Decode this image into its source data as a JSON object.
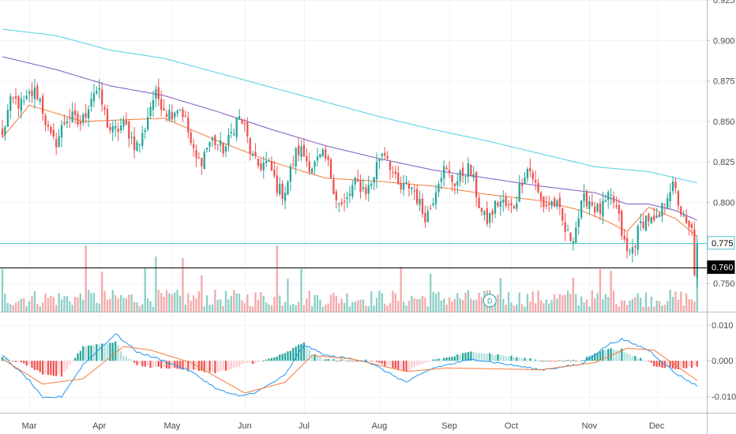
{
  "chart_data": [
    {
      "type": "candlestick",
      "panel": "price",
      "scale": "linear",
      "ylim": [
        0.7325,
        0.925
      ],
      "y_ticks": [
        "0.925",
        "0.900",
        "0.875",
        "0.850",
        "0.825",
        "0.800",
        "0.775",
        "0.750"
      ],
      "x_labels": [
        "Mar",
        "Apr",
        "May",
        "Jun",
        "Jul",
        "Aug",
        "Sep",
        "Oct",
        "Nov",
        "Dec"
      ],
      "price_lines": [
        {
          "label": "0.775",
          "value": 0.775,
          "color": "#4fc3c8",
          "text_color": "#000000",
          "bg": "#ffffff"
        },
        {
          "label": "0.760",
          "value": 0.76,
          "color": "#000000",
          "text_color": "#ffffff",
          "bg": "#000000"
        }
      ],
      "colors": {
        "up": "#26a69a",
        "down": "#ef5350",
        "up_volume": "#8ccfc6",
        "down_volume": "#f4a9a9",
        "ma_fast": "#f57c3a",
        "ma_mid": "#7e57c2",
        "ma_slow": "#4dd0e1"
      },
      "moving_averages": [
        {
          "points": [
            [
              0,
              0.84
            ],
            [
              10,
              0.86
            ],
            [
              30,
              0.85
            ],
            [
              60,
              0.852
            ],
            [
              80,
              0.838
            ],
            [
              100,
              0.825
            ],
            [
              120,
              0.815
            ],
            [
              140,
              0.813
            ],
            [
              160,
              0.81
            ],
            [
              180,
              0.805
            ],
            [
              200,
              0.801
            ],
            [
              215,
              0.795
            ],
            [
              225,
              0.788
            ],
            [
              232,
              0.782
            ],
            [
              240,
              0.797
            ],
            [
              250,
              0.79
            ],
            [
              258,
              0.779
            ]
          ]
        },
        {
          "points": [
            [
              0,
              0.89
            ],
            [
              20,
              0.882
            ],
            [
              40,
              0.872
            ],
            [
              60,
              0.866
            ],
            [
              80,
              0.856
            ],
            [
              100,
              0.845
            ],
            [
              120,
              0.835
            ],
            [
              140,
              0.827
            ],
            [
              160,
              0.82
            ],
            [
              180,
              0.815
            ],
            [
              200,
              0.81
            ],
            [
              220,
              0.806
            ],
            [
              232,
              0.799
            ],
            [
              240,
              0.799
            ],
            [
              250,
              0.795
            ],
            [
              258,
              0.789
            ]
          ]
        },
        {
          "points": [
            [
              0,
              0.907
            ],
            [
              20,
              0.903
            ],
            [
              40,
              0.894
            ],
            [
              60,
              0.889
            ],
            [
              80,
              0.88
            ],
            [
              100,
              0.871
            ],
            [
              120,
              0.862
            ],
            [
              140,
              0.853
            ],
            [
              160,
              0.845
            ],
            [
              180,
              0.838
            ],
            [
              200,
              0.83
            ],
            [
              220,
              0.822
            ],
            [
              240,
              0.819
            ],
            [
              258,
              0.812
            ]
          ]
        }
      ],
      "volume_markers": [
        {
          "label": "D",
          "bar": 181
        }
      ]
    },
    {
      "type": "histogram",
      "panel": "macd",
      "ylim": [
        -0.0145,
        0.0135
      ],
      "y_ticks": [
        "0.010",
        "0.000",
        "-0.010"
      ],
      "x_labels": [
        "Mar",
        "Apr",
        "May",
        "Jun",
        "Jul",
        "Aug",
        "Sep",
        "Oct",
        "Nov",
        "Dec"
      ],
      "colors": {
        "hist_up_strong": "#26a69a",
        "hist_up_weak": "#b2dfdb",
        "hist_down_strong": "#ef5350",
        "hist_down_weak": "#ffcdd2",
        "macd_line": "#2196f3",
        "signal_line": "#f57c3a"
      },
      "macd_line": [
        [
          0,
          0.0015
        ],
        [
          10,
          -0.0055
        ],
        [
          15,
          -0.0105
        ],
        [
          22,
          -0.01
        ],
        [
          30,
          -0.001
        ],
        [
          42,
          0.0075
        ],
        [
          50,
          0.0025
        ],
        [
          60,
          0.0
        ],
        [
          70,
          -0.003
        ],
        [
          80,
          -0.008
        ],
        [
          88,
          -0.01
        ],
        [
          95,
          -0.0085
        ],
        [
          105,
          -0.004
        ],
        [
          112,
          0.0045
        ],
        [
          120,
          0.0015
        ],
        [
          135,
          0.0
        ],
        [
          150,
          -0.006
        ],
        [
          160,
          -0.002
        ],
        [
          175,
          0.0005
        ],
        [
          200,
          -0.0025
        ],
        [
          215,
          -0.001
        ],
        [
          225,
          0.0045
        ],
        [
          230,
          0.006
        ],
        [
          240,
          0.003
        ],
        [
          250,
          -0.0035
        ],
        [
          258,
          -0.007
        ]
      ],
      "signal_line": [
        [
          0,
          0.0005
        ],
        [
          15,
          -0.0065
        ],
        [
          30,
          -0.005
        ],
        [
          45,
          0.004
        ],
        [
          55,
          0.003
        ],
        [
          70,
          -0.0005
        ],
        [
          90,
          -0.009
        ],
        [
          105,
          -0.006
        ],
        [
          115,
          0.0015
        ],
        [
          130,
          0.0005
        ],
        [
          150,
          -0.003
        ],
        [
          165,
          -0.002
        ],
        [
          200,
          -0.0025
        ],
        [
          220,
          -0.0005
        ],
        [
          232,
          0.0035
        ],
        [
          242,
          0.003
        ],
        [
          258,
          -0.0055
        ]
      ]
    }
  ]
}
